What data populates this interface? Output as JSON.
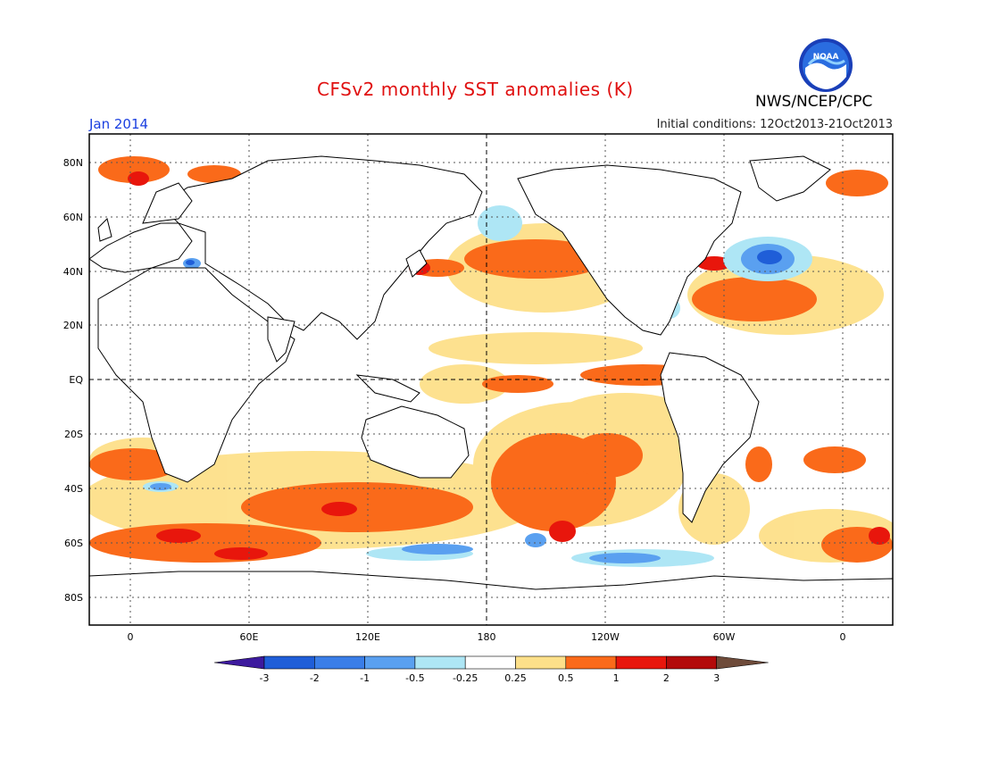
{
  "header": {
    "title": "CFSv2 monthly SST anomalies (K)",
    "month": "Jan 2014",
    "initial_conditions": "Initial conditions: 12Oct2013-21Oct2013",
    "agency": "NWS/NCEP/CPC",
    "logo_text": "NOAA"
  },
  "map": {
    "lat_labels": [
      "80N",
      "60N",
      "40N",
      "20N",
      "EQ",
      "20S",
      "40S",
      "60S",
      "80S"
    ],
    "lon_labels": [
      "0",
      "60E",
      "120E",
      "180",
      "120W",
      "60W",
      "0"
    ],
    "colors": {
      "ocean": "#ffffff",
      "land_outline": "#000000",
      "warm_light": "#fde08a",
      "warm_med": "#fa6a1a",
      "warm_strong": "#e8160c",
      "cold_light": "#aee6f5",
      "cold_med": "#5aa0f0",
      "cold_strong": "#1f5ed8"
    }
  },
  "colorbar": {
    "labels": [
      "-3",
      "-2",
      "-1",
      "-0.5",
      "-0.25",
      "0.25",
      "0.5",
      "1",
      "2",
      "3"
    ],
    "colors": [
      "#3d1a9e",
      "#1f5ed8",
      "#3a7ee8",
      "#5aa0f0",
      "#aee6f5",
      "#ffffff",
      "#fde08a",
      "#fa6a1a",
      "#e8160c",
      "#b30a0a",
      "#6e4b3a"
    ]
  }
}
